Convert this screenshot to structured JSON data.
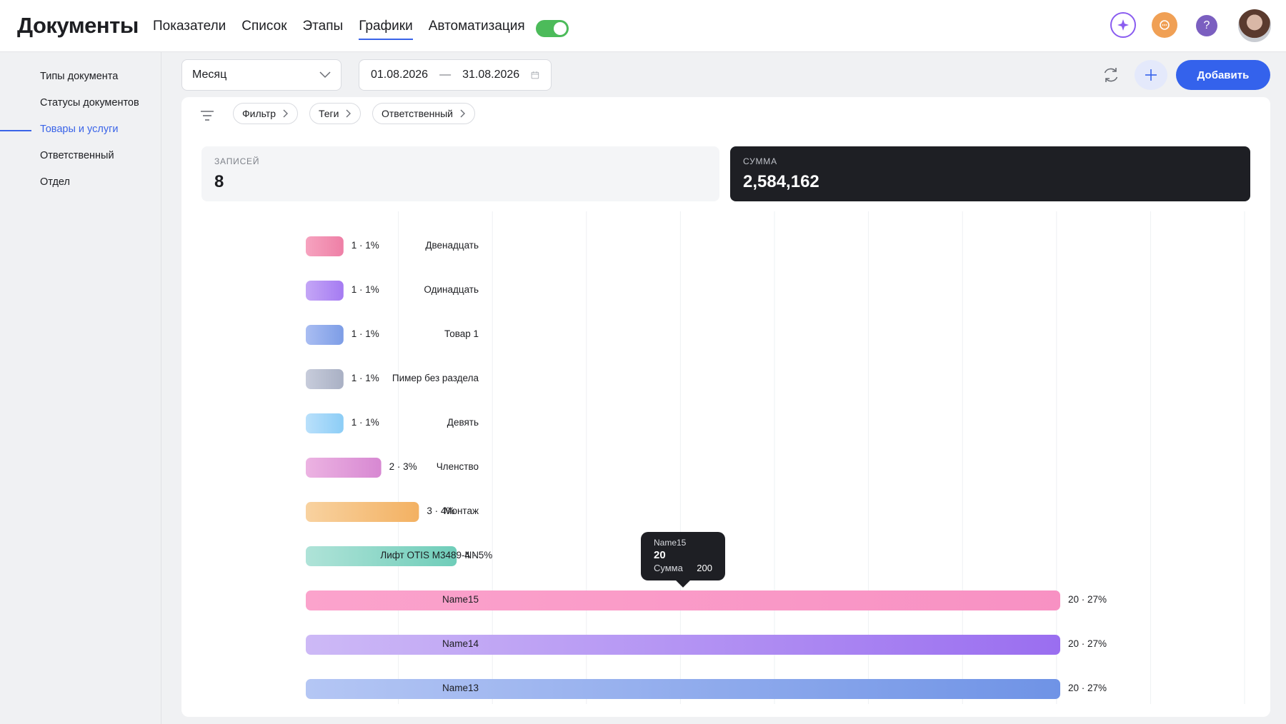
{
  "app": {
    "title": "Документы"
  },
  "nav": {
    "items": [
      {
        "label": "Показатели",
        "active": false
      },
      {
        "label": "Список",
        "active": false
      },
      {
        "label": "Этапы",
        "active": false
      },
      {
        "label": "Графики",
        "active": true
      },
      {
        "label": "Автоматизация",
        "active": false
      }
    ],
    "toggle_on": true
  },
  "header_icons": [
    "ai-sparkle-icon",
    "chat-icon",
    "help-icon",
    "user-avatar"
  ],
  "help_label": "?",
  "sidebar": {
    "items": [
      {
        "label": "Типы документа",
        "active": false
      },
      {
        "label": "Статусы документов",
        "active": false
      },
      {
        "label": "Товары и услуги",
        "active": true
      },
      {
        "label": "Ответственный",
        "active": false
      },
      {
        "label": "Отдел",
        "active": false
      }
    ]
  },
  "toolbar": {
    "period": "Месяц",
    "date_from": "01.08.2026",
    "date_sep": "—",
    "date_to": "31.08.2026",
    "add_label": "Добавить"
  },
  "filters": {
    "chips": [
      "Фильтр",
      "Теги",
      "Ответственный"
    ]
  },
  "stats": {
    "records_label": "Записей",
    "records_value": "8",
    "sum_label": "Сумма",
    "sum_value": "2,584,162"
  },
  "tooltip": {
    "name": "Name15",
    "value": "20",
    "sum_label": "Сумма",
    "sum_value": "200"
  },
  "colors": {
    "accent": "#3462ec",
    "toggle": "#4cbb5a",
    "dark_card": "#1e1f24"
  },
  "chart_data": {
    "type": "bar",
    "orientation": "horizontal",
    "categories": [
      "Двенадцать",
      "Одинадцать",
      "Товар 1",
      "Пимер без раздела",
      "Девять",
      "Членство",
      "Монтаж",
      "Лифт OTIS M3489-NN",
      "Name15",
      "Name14",
      "Name13"
    ],
    "values": [
      1,
      1,
      1,
      1,
      1,
      2,
      3,
      4,
      20,
      20,
      20
    ],
    "value_labels": [
      "1 · 1%",
      "1 · 1%",
      "1 · 1%",
      "1 · 1%",
      "1 · 1%",
      "2 · 3%",
      "3 · 4%",
      "4 · 5%",
      "20 · 27%",
      "20 · 27%",
      "20 · 27%"
    ],
    "bar_colors": [
      [
        "#f6a3bf",
        "#ee7fa6"
      ],
      [
        "#c4a6f6",
        "#a57bf2"
      ],
      [
        "#a9bdf2",
        "#7d9de6"
      ],
      [
        "#c7ccdb",
        "#a9b0c4"
      ],
      [
        "#b9e0fb",
        "#8ccdf6"
      ],
      [
        "#ecb3e2",
        "#d788d2"
      ],
      [
        "#f8d2a0",
        "#f3b162"
      ],
      [
        "#afe3d8",
        "#6fcdb9"
      ],
      [
        "#fba3cc",
        "#f891c3"
      ],
      [
        "#cdb9f6",
        "#9a6ef0"
      ],
      [
        "#b4c6f4",
        "#6f93e6"
      ]
    ],
    "xlim": [
      0,
      20
    ],
    "grid": true,
    "legend": "none"
  }
}
